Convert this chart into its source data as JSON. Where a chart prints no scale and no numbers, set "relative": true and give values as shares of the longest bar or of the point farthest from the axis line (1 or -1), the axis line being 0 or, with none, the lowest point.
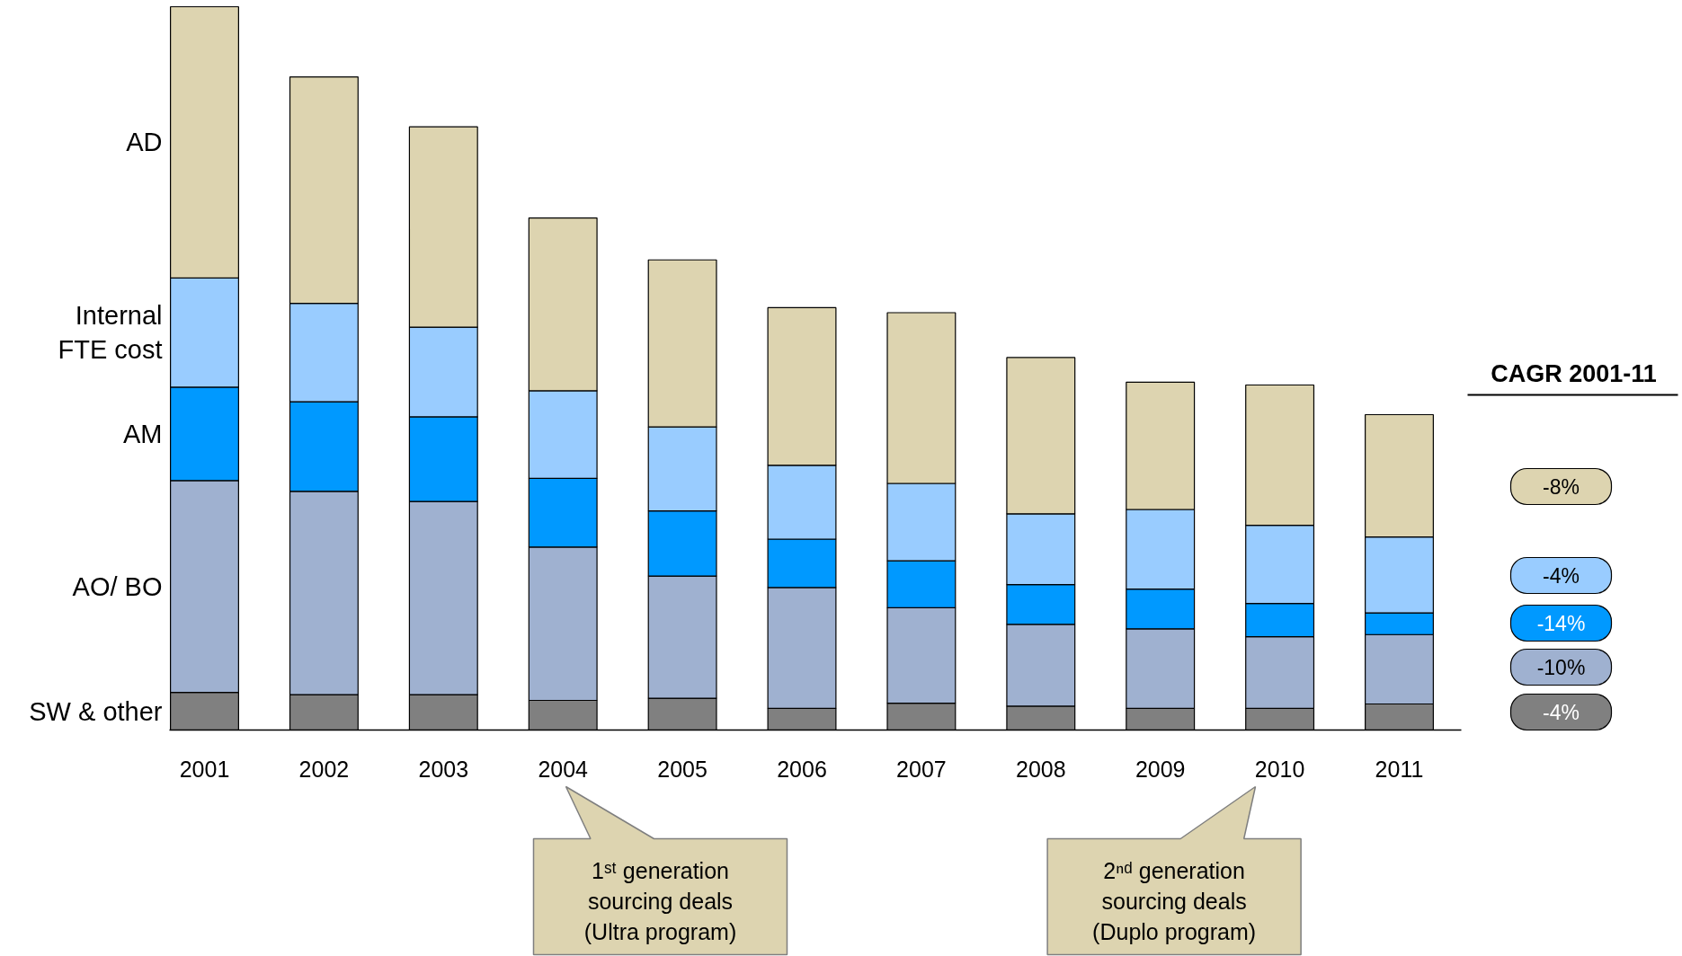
{
  "chart_data": {
    "type": "bar",
    "stacked": true,
    "relative": true,
    "categories": [
      "2001",
      "2002",
      "2003",
      "2004",
      "2005",
      "2006",
      "2007",
      "2008",
      "2009",
      "2010",
      "2011"
    ],
    "series": [
      {
        "name": "SW & other",
        "color": "#808080",
        "values": [
          0.052,
          0.049,
          0.049,
          0.041,
          0.044,
          0.03,
          0.037,
          0.033,
          0.03,
          0.03,
          0.036
        ]
      },
      {
        "name": "AO/ BO",
        "color": "#9fb1d0",
        "values": [
          0.293,
          0.281,
          0.267,
          0.212,
          0.169,
          0.167,
          0.132,
          0.113,
          0.11,
          0.099,
          0.096
        ]
      },
      {
        "name": "AM",
        "color": "#0099ff",
        "values": [
          0.129,
          0.124,
          0.117,
          0.095,
          0.09,
          0.067,
          0.065,
          0.055,
          0.055,
          0.046,
          0.03
        ]
      },
      {
        "name": "Internal FTE cost",
        "color": "#99ccff",
        "values": [
          0.151,
          0.136,
          0.124,
          0.121,
          0.116,
          0.102,
          0.107,
          0.098,
          0.11,
          0.108,
          0.105
        ]
      },
      {
        "name": "AD",
        "color": "#ddd4b0",
        "values": [
          0.375,
          0.313,
          0.277,
          0.239,
          0.231,
          0.218,
          0.236,
          0.216,
          0.176,
          0.194,
          0.169
        ]
      }
    ],
    "annotations": [
      "CAGR 2001-11",
      "-8%",
      "-4%",
      "-14%",
      "-10%",
      "-4%",
      "1ˢᵗ generation sourcing deals (Ultra program)",
      "2ⁿᵈ generation sourcing deals (Duplo program)"
    ]
  }
}
